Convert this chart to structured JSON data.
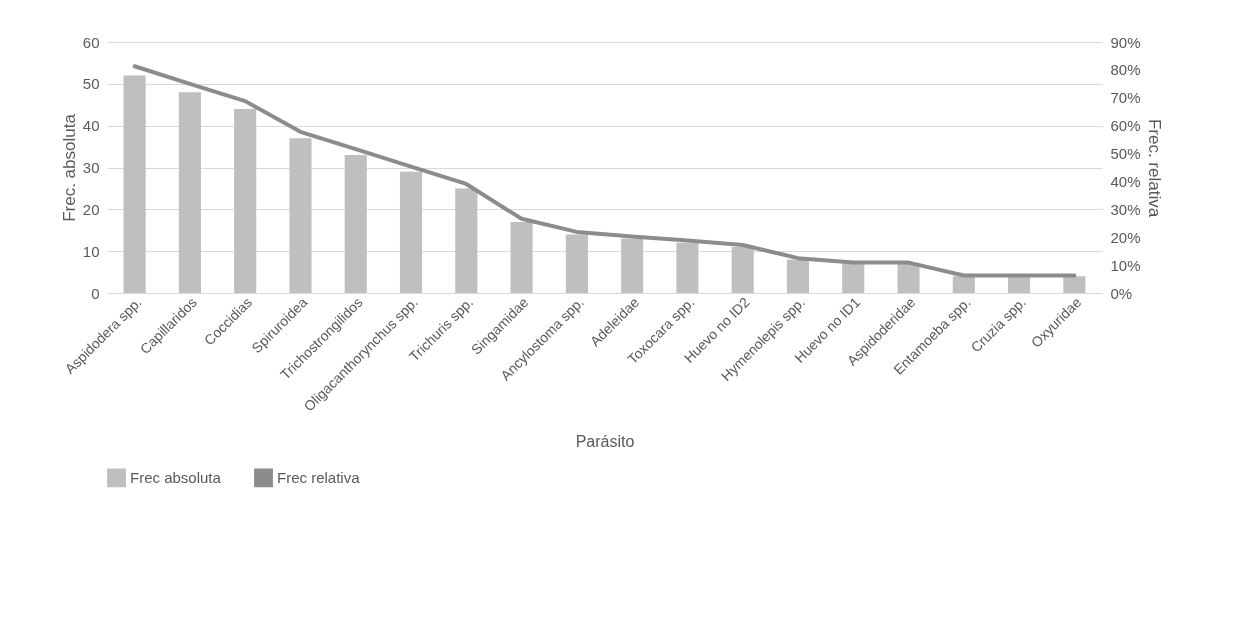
{
  "chart_data": {
    "type": "bar",
    "xlabel": "Parásito",
    "ylabel": "Frec. absoluta",
    "y2label": "Frec. relativa",
    "categories": [
      "Aspidodera spp.",
      "Capillaridos",
      "Coccidias",
      "Spiruroidea",
      "Trichostrongilidos",
      "Oligacanthorynchus spp.",
      "Trichuris spp.",
      "Singamidae",
      "Ancylostoma spp.",
      "Adeleidae",
      "Toxocara spp.",
      "Huevo no ID2",
      "Hymenolepis spp.",
      "Huevo no ID1",
      "Aspidoderidae",
      "Entamoeba spp.",
      "Cruzia spp.",
      "Oxyuridae"
    ],
    "series": [
      {
        "name": "Frec absoluta",
        "color": "#bfbfbf",
        "values": [
          52,
          48,
          44,
          37,
          33,
          29,
          25,
          17,
          14,
          13,
          12,
          11,
          8,
          7,
          7,
          4,
          4,
          4
        ]
      },
      {
        "name": "Frec relativa",
        "type": "line",
        "axis": "y2",
        "color": "#8c8c8c",
        "values": [
          81.3,
          75,
          68.8,
          57.8,
          51.6,
          45.3,
          39.1,
          26.6,
          21.9,
          20.3,
          18.8,
          17.2,
          12.5,
          10.9,
          10.9,
          6.3,
          6.3,
          6.3
        ]
      }
    ],
    "ylim": [
      0,
      60
    ],
    "yticks": [
      0,
      10,
      20,
      30,
      40,
      50,
      60
    ],
    "y2lim": [
      0,
      90
    ],
    "y2ticks": [
      {
        "value": 0,
        "label": "0%"
      },
      {
        "value": 10,
        "label": "10%"
      },
      {
        "value": 20,
        "label": "20%"
      },
      {
        "value": 30,
        "label": "30%"
      },
      {
        "value": 40,
        "label": "40%"
      },
      {
        "value": 50,
        "label": "50%"
      },
      {
        "value": 60,
        "label": "60%"
      },
      {
        "value": 70,
        "label": "70%"
      },
      {
        "value": 80,
        "label": "80%"
      },
      {
        "value": 90,
        "label": "90%"
      }
    ],
    "grid": "y",
    "legend": "bottom",
    "marker": "none",
    "line_style": "solid"
  }
}
